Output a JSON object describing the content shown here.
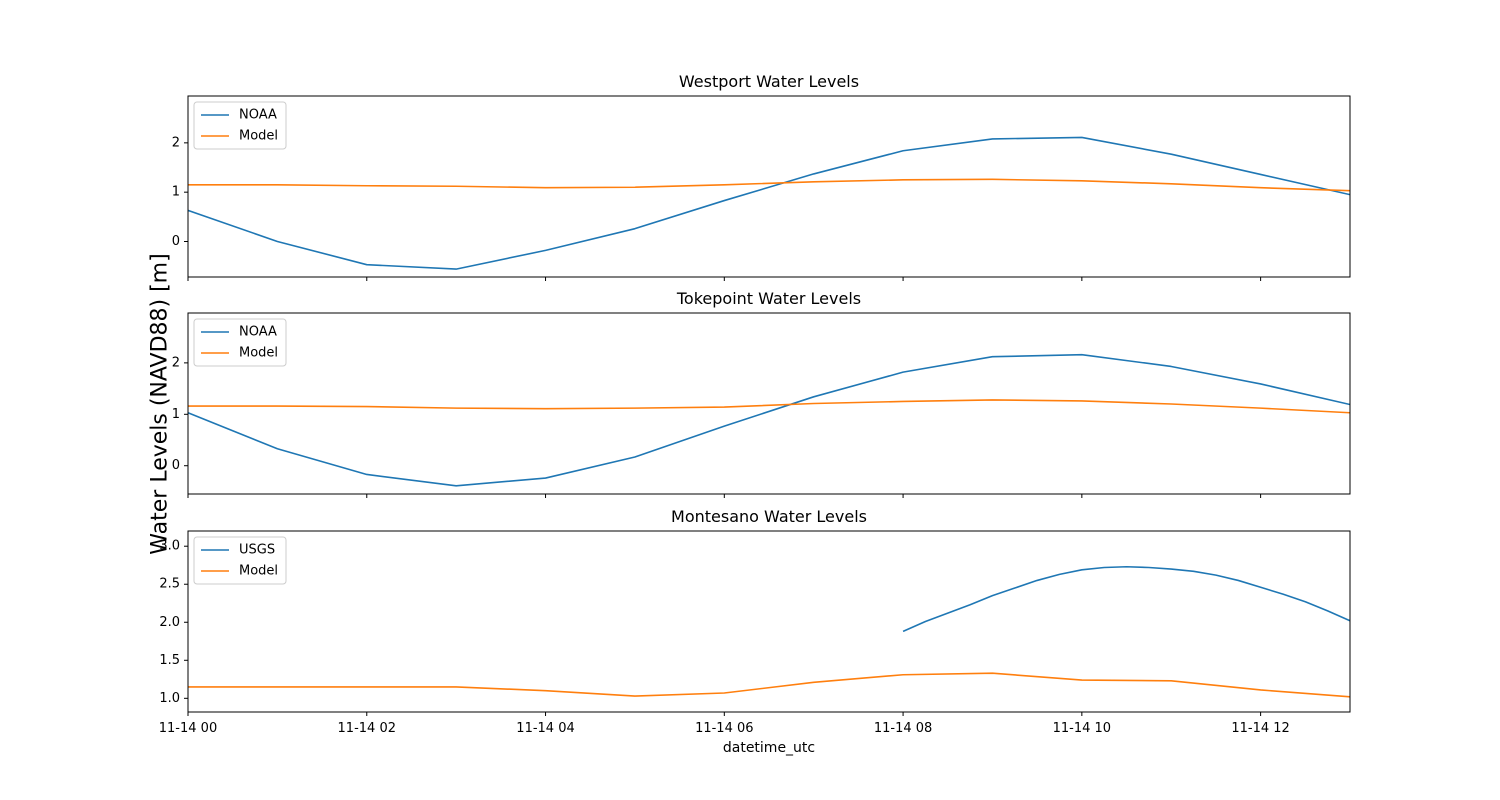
{
  "figure": {
    "ylabel": "Water Levels (NAVD88) [m]",
    "xlabel": "datetime_utc",
    "x_tick_labels": [
      "11-14 00",
      "11-14 02",
      "11-14 04",
      "11-14 06",
      "11-14 08",
      "11-14 10",
      "11-14 12"
    ]
  },
  "colors": {
    "obs": "#1f77b4",
    "model": "#ff7f0e"
  },
  "chart_data": [
    {
      "type": "line",
      "title": "Westport Water Levels",
      "x_unit": "hours after 11-14 00:00 UTC",
      "xlim": [
        0,
        13
      ],
      "ylim": [
        -0.72,
        2.95
      ],
      "y_ticks": [
        0,
        1,
        2
      ],
      "y_tick_labels": [
        "0",
        "1",
        "2"
      ],
      "legend": "upper left",
      "series": [
        {
          "name": "NOAA",
          "color": "#1f77b4",
          "x": [
            0,
            1,
            2,
            3,
            4,
            5,
            6,
            7,
            8,
            9,
            10,
            11,
            12,
            13
          ],
          "y": [
            0.63,
            0.0,
            -0.47,
            -0.56,
            -0.18,
            0.26,
            0.83,
            1.37,
            1.84,
            2.08,
            2.11,
            1.77,
            1.36,
            0.95
          ]
        },
        {
          "name": "Model",
          "color": "#ff7f0e",
          "x": [
            0,
            1,
            2,
            3,
            4,
            5,
            6,
            7,
            8,
            9,
            10,
            11,
            12,
            13
          ],
          "y": [
            1.15,
            1.15,
            1.13,
            1.12,
            1.09,
            1.1,
            1.15,
            1.21,
            1.25,
            1.26,
            1.23,
            1.17,
            1.09,
            1.03
          ]
        }
      ]
    },
    {
      "type": "line",
      "title": "Tokepoint Water Levels",
      "x_unit": "hours after 11-14 00:00 UTC",
      "xlim": [
        0,
        13
      ],
      "ylim": [
        -0.55,
        2.97
      ],
      "y_ticks": [
        0,
        1,
        2
      ],
      "y_tick_labels": [
        "0",
        "1",
        "2"
      ],
      "legend": "upper left",
      "series": [
        {
          "name": "NOAA",
          "color": "#1f77b4",
          "x": [
            0,
            1,
            2,
            3,
            4,
            5,
            6,
            7,
            8,
            9,
            10,
            11,
            12,
            13
          ],
          "y": [
            1.03,
            0.33,
            -0.17,
            -0.39,
            -0.24,
            0.17,
            0.77,
            1.34,
            1.82,
            2.12,
            2.16,
            1.93,
            1.59,
            1.19
          ]
        },
        {
          "name": "Model",
          "color": "#ff7f0e",
          "x": [
            0,
            1,
            2,
            3,
            4,
            5,
            6,
            7,
            8,
            9,
            10,
            11,
            12,
            13
          ],
          "y": [
            1.16,
            1.16,
            1.15,
            1.12,
            1.11,
            1.12,
            1.14,
            1.21,
            1.25,
            1.28,
            1.26,
            1.2,
            1.12,
            1.03
          ]
        }
      ]
    },
    {
      "type": "line",
      "title": "Montesano Water Levels",
      "x_unit": "hours after 11-14 00:00 UTC",
      "xlim": [
        0,
        13
      ],
      "ylim": [
        0.82,
        3.2
      ],
      "y_ticks": [
        1.0,
        1.5,
        2.0,
        2.5,
        3.0
      ],
      "y_tick_labels": [
        "1.0",
        "1.5",
        "2.0",
        "2.5",
        "3.0"
      ],
      "legend": "upper left",
      "series": [
        {
          "name": "USGS",
          "color": "#1f77b4",
          "x": [
            8,
            8.25,
            8.5,
            8.75,
            9,
            9.25,
            9.5,
            9.75,
            10,
            10.25,
            10.5,
            10.75,
            11,
            11.25,
            11.5,
            11.75,
            12,
            12.25,
            12.5,
            12.75,
            13
          ],
          "y": [
            1.88,
            2.01,
            2.12,
            2.23,
            2.35,
            2.45,
            2.55,
            2.63,
            2.69,
            2.72,
            2.73,
            2.72,
            2.7,
            2.67,
            2.62,
            2.55,
            2.46,
            2.37,
            2.27,
            2.15,
            2.02
          ]
        },
        {
          "name": "Model",
          "color": "#ff7f0e",
          "x": [
            0,
            1,
            2,
            3,
            4,
            5,
            6,
            7,
            8,
            9,
            10,
            11,
            12,
            13
          ],
          "y": [
            1.15,
            1.15,
            1.15,
            1.15,
            1.1,
            1.03,
            1.07,
            1.21,
            1.31,
            1.33,
            1.24,
            1.23,
            1.11,
            1.02
          ]
        }
      ]
    }
  ]
}
